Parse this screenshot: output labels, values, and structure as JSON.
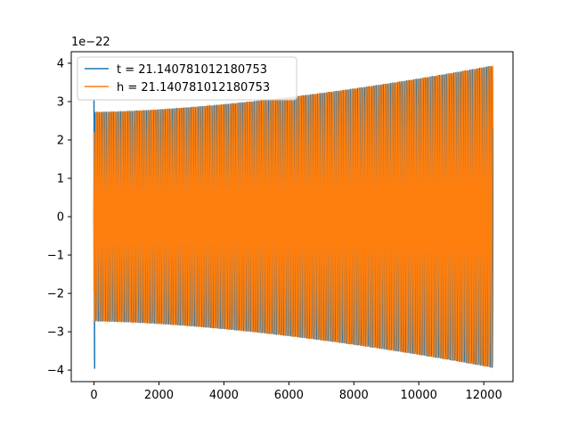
{
  "chart_data": {
    "type": "line",
    "title": "",
    "xlabel": "",
    "ylabel": "",
    "y_offset_label": "1e−22",
    "y_scale_exponent": -22,
    "xlim": [
      -700,
      12900
    ],
    "ylim": [
      -4.3,
      4.3
    ],
    "x_ticks": [
      0,
      2000,
      4000,
      6000,
      8000,
      10000,
      12000
    ],
    "x_tick_labels": [
      "0",
      "2000",
      "4000",
      "6000",
      "8000",
      "10000",
      "12000"
    ],
    "y_ticks": [
      -4,
      -3,
      -2,
      -1,
      0,
      1,
      2,
      3,
      4
    ],
    "y_tick_labels": [
      "−4",
      "−3",
      "−2",
      "−1",
      "0",
      "1",
      "2",
      "3",
      "4"
    ],
    "grid": false,
    "legend_position": "top-left",
    "waveform": {
      "x_start": 0,
      "x_end": 12280,
      "envelope_start": 2.72,
      "envelope_end": 3.93,
      "cycles": 170
    },
    "series": [
      {
        "name": "t = 21.140781012180753",
        "color": "#1f77b4",
        "start_spike_max": 3.05,
        "start_spike_min": -3.95,
        "end_value": 2.3,
        "phase": 0.0
      },
      {
        "name": "h = 21.140781012180753",
        "color": "#ff7f0e",
        "start_value": -1.95,
        "end_value": 2.3,
        "phase": 0.35
      }
    ]
  }
}
